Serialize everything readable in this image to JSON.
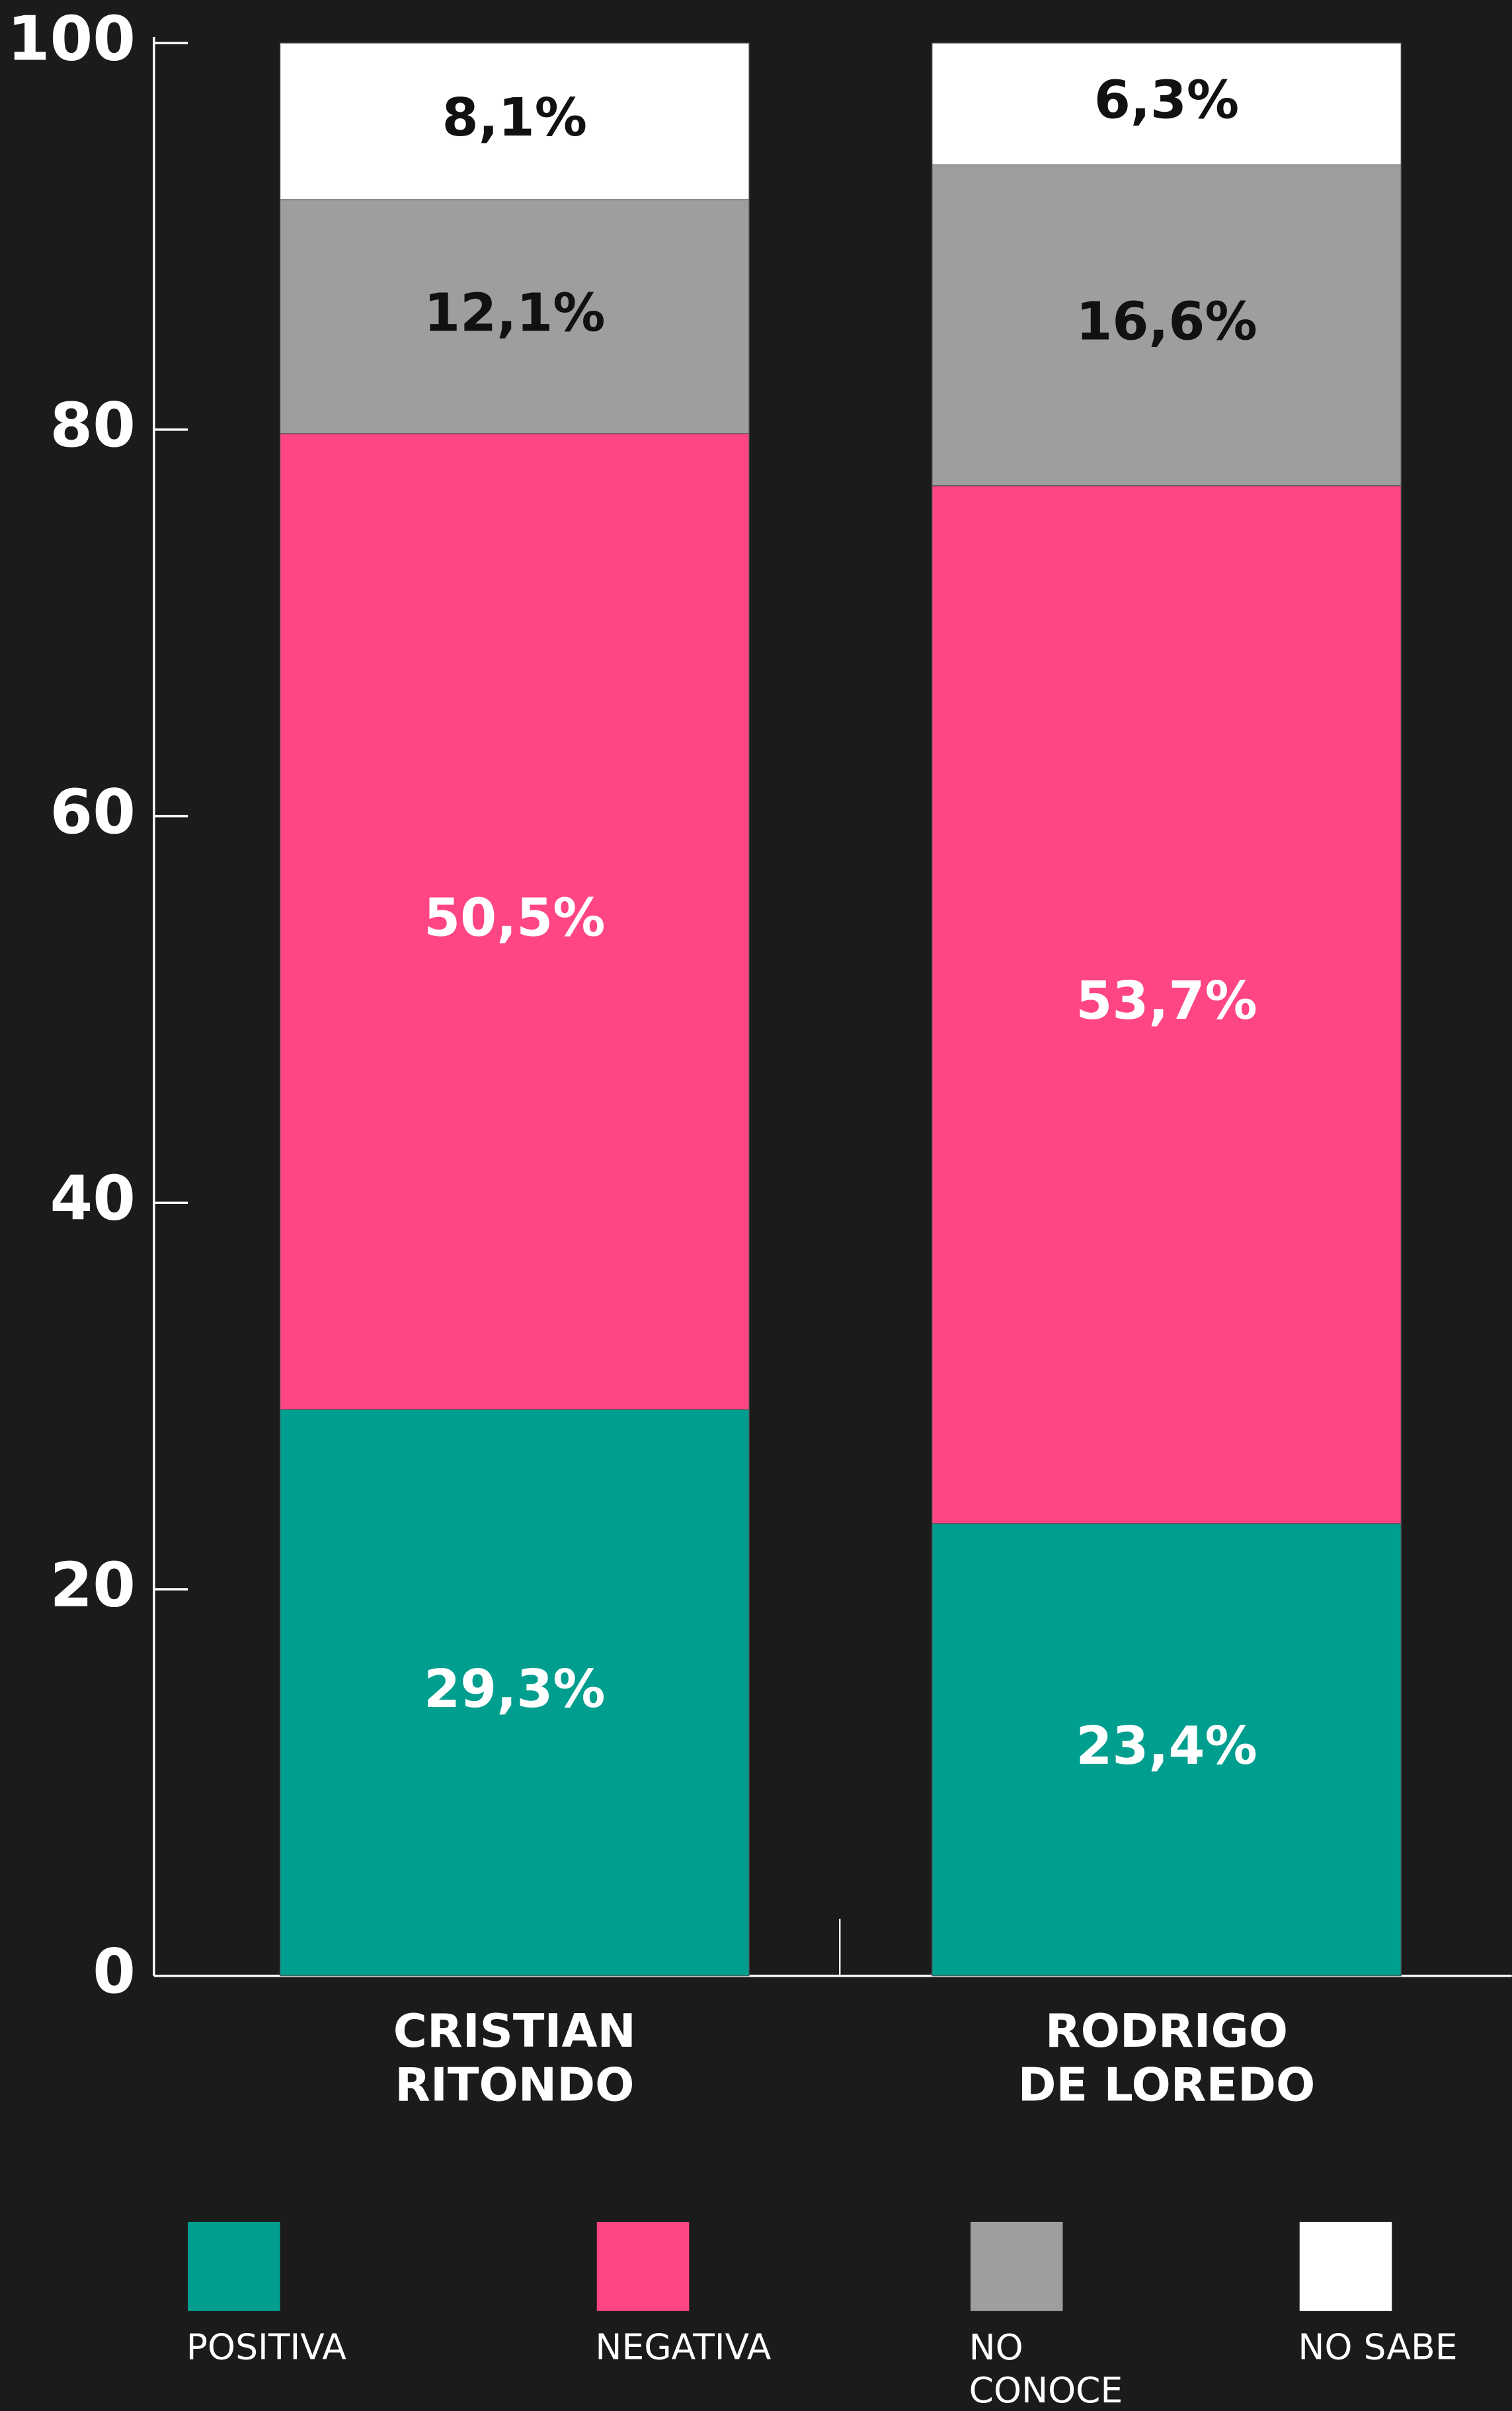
{
  "chart_data": {
    "type": "stacked_bar",
    "categories": [
      "CRISTIAN\nRITONDO",
      "RODRIGO\nDE LOREDO"
    ],
    "series": [
      {
        "name": "POSITIVA",
        "color": "#009e8f",
        "values": [
          29.3,
          23.4
        ],
        "value_labels": [
          "29,3%",
          "23,4%"
        ]
      },
      {
        "name": "NEGATIVA",
        "color": "#ff4585",
        "values": [
          50.5,
          53.7
        ],
        "value_labels": [
          "50,5%",
          "53,7%"
        ]
      },
      {
        "name": "NO\nCONOCE",
        "color": "#9e9e9e",
        "values": [
          12.1,
          16.6
        ],
        "value_labels": [
          "12,1%",
          "16,6%"
        ]
      },
      {
        "name": "NO SABE",
        "color": "#ffffff",
        "values": [
          8.1,
          6.3
        ],
        "value_labels": [
          "8,1%",
          "6,3%"
        ]
      }
    ],
    "ylim": [
      0,
      100
    ],
    "yticks": [
      0,
      20,
      40,
      60,
      80,
      100
    ],
    "legend": "bottom"
  }
}
